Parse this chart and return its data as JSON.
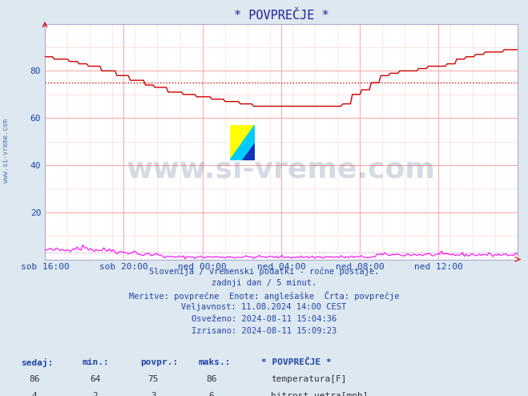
{
  "title": "* POVPREČJE *",
  "bg_color": "#dde8f0",
  "plot_bg_color": "#ffffff",
  "grid_color_major": "#ffaaaa",
  "grid_color_minor": "#ffdddd",
  "x_labels": [
    "sob 16:00",
    "sob 20:00",
    "ned 00:00",
    "ned 04:00",
    "ned 08:00",
    "ned 12:00"
  ],
  "x_ticks_norm": [
    0.0,
    0.1667,
    0.3333,
    0.5,
    0.6667,
    0.8333
  ],
  "ylim": [
    0,
    100
  ],
  "yticks": [
    20,
    40,
    60,
    80
  ],
  "avg_line": 75,
  "avg_line_color": "#cc0000",
  "temp_color": "#cc0000",
  "wind_color": "#ff00ff",
  "wind_avg_line": 3,
  "wind_avg_color": "#cc88cc",
  "subtitle_lines": [
    "Slovenija / vremenski podatki - ročne postaje.",
    "zadnji dan / 5 minut.",
    "Meritve: povprečne  Enote: anglešaške  Črta: povprečje",
    "Veljavnost: 11.08.2024 14:00 CEST",
    "Osveženo: 2024-08-11 15:04:36",
    "Izrisano: 2024-08-11 15:09:23"
  ],
  "table_headers": [
    "sedaj:",
    "min.:",
    "povpr.:",
    "maks.:"
  ],
  "table_data": [
    [
      86,
      64,
      75,
      86,
      "temperatura[F]"
    ],
    [
      4,
      2,
      3,
      6,
      "hitrost vetra[mph]"
    ]
  ],
  "temp_color_box": "#cc0000",
  "wind_color_box": "#ee00ee",
  "watermark_text": "www.si-vreme.com",
  "watermark_color": "#1a3a6a",
  "watermark_alpha": 0.18,
  "sidebar_text": "www.si-vreme.com",
  "sidebar_color": "#5577aa",
  "title_color": "#222299",
  "text_color": "#2244aa"
}
